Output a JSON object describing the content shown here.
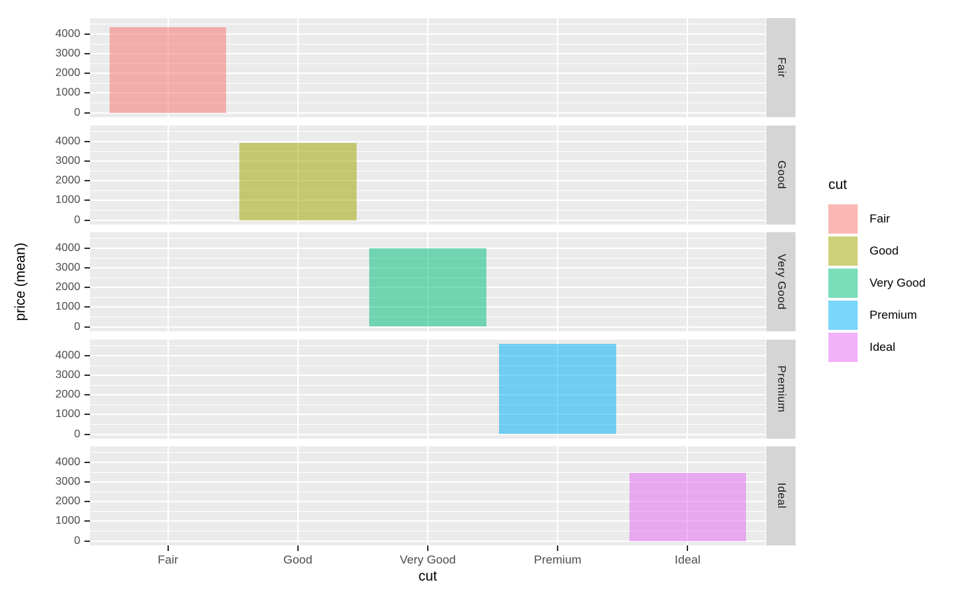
{
  "chart_data": {
    "type": "bar",
    "title": "",
    "xlabel": "cut",
    "ylabel": "price (mean)",
    "categories": [
      "Fair",
      "Good",
      "Very Good",
      "Premium",
      "Ideal"
    ],
    "values": [
      4358.8,
      3928.9,
      3981.8,
      4584.3,
      3457.5
    ],
    "facet_rows": [
      "Fair",
      "Good",
      "Very Good",
      "Premium",
      "Ideal"
    ],
    "facet_note": "one facet row per cut, right-side strips, fixed y scale",
    "y_tick_labels": [
      "0",
      "1000",
      "2000",
      "3000",
      "4000"
    ],
    "y_major_breaks": [
      0,
      1000,
      2000,
      3000,
      4000
    ],
    "y_minor_breaks": [
      500,
      1500,
      2500,
      3500,
      4500
    ],
    "ylim": [
      -229,
      4813
    ],
    "grid": "white major+minor horizontal lines, white vertical line at each category center",
    "legend_position": "right",
    "bar_alpha": 0.52,
    "series_colors": [
      "#F8766D",
      "#A3A500",
      "#00BF7D",
      "#00B0F6",
      "#E76BF3"
    ],
    "panel_bg": "#EBEBEB",
    "strip_bg": "#D5D5D5",
    "grid_color": "#FFFFFF",
    "tick_color": "#333333",
    "tick_label_color": "#4D4D4D",
    "legend": {
      "title": "cut",
      "entries": [
        {
          "label": "Fair",
          "color": "#F8766D"
        },
        {
          "label": "Good",
          "color": "#A3A500"
        },
        {
          "label": "Very Good",
          "color": "#00BF7D"
        },
        {
          "label": "Premium",
          "color": "#00B0F6"
        },
        {
          "label": "Ideal",
          "color": "#E76BF3"
        }
      ]
    }
  }
}
